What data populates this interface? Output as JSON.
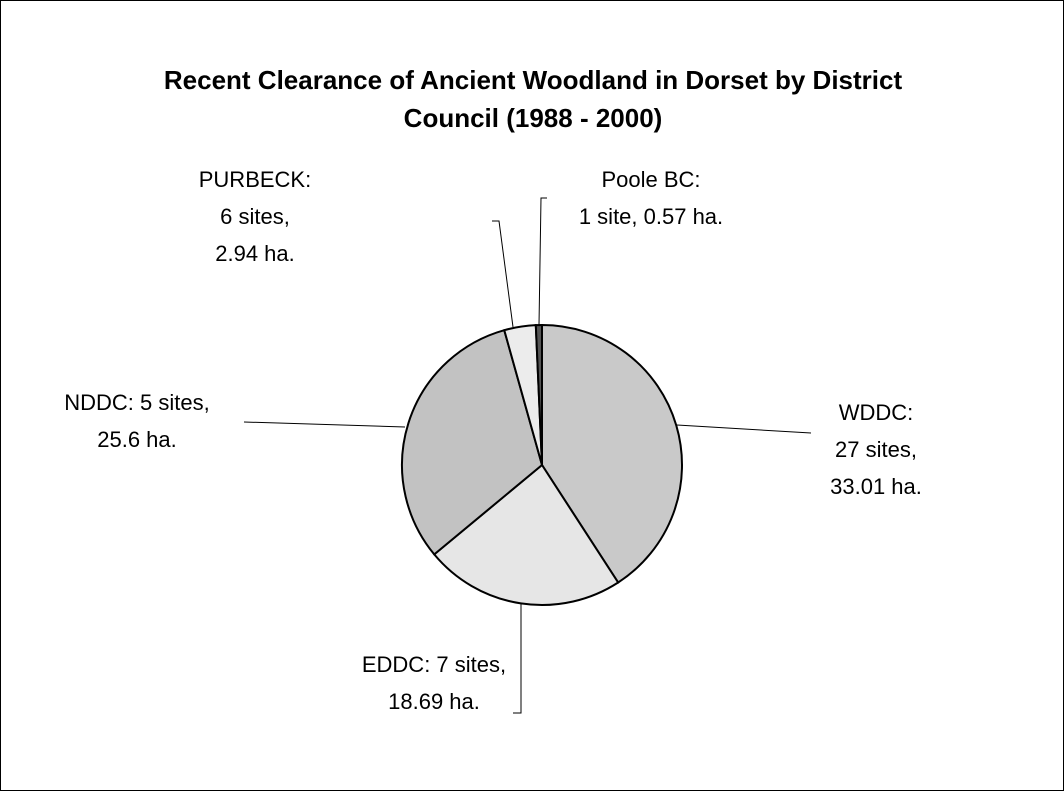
{
  "chart_data": {
    "type": "pie",
    "title": "Recent Clearance of Ancient Woodland in Dorset by District Council (1988 - 2000)",
    "values": [
      33.01,
      18.69,
      25.6,
      2.94,
      0.57
    ],
    "value_labels": [
      [
        "WDDC:",
        "27 sites,",
        "33.01 ha."
      ],
      [
        "EDDC: 7 sites,",
        "18.69 ha."
      ],
      [
        "NDDC: 5 sites,",
        "25.6 ha."
      ],
      [
        "PURBECK:",
        "6 sites,",
        "2.94 ha."
      ],
      [
        "Poole BC:",
        "1 site, 0.57 ha."
      ]
    ],
    "colors": [
      "#c9c9c9",
      "#e6e6e6",
      "#c2c2c2",
      "#ececec",
      "#555555"
    ]
  }
}
